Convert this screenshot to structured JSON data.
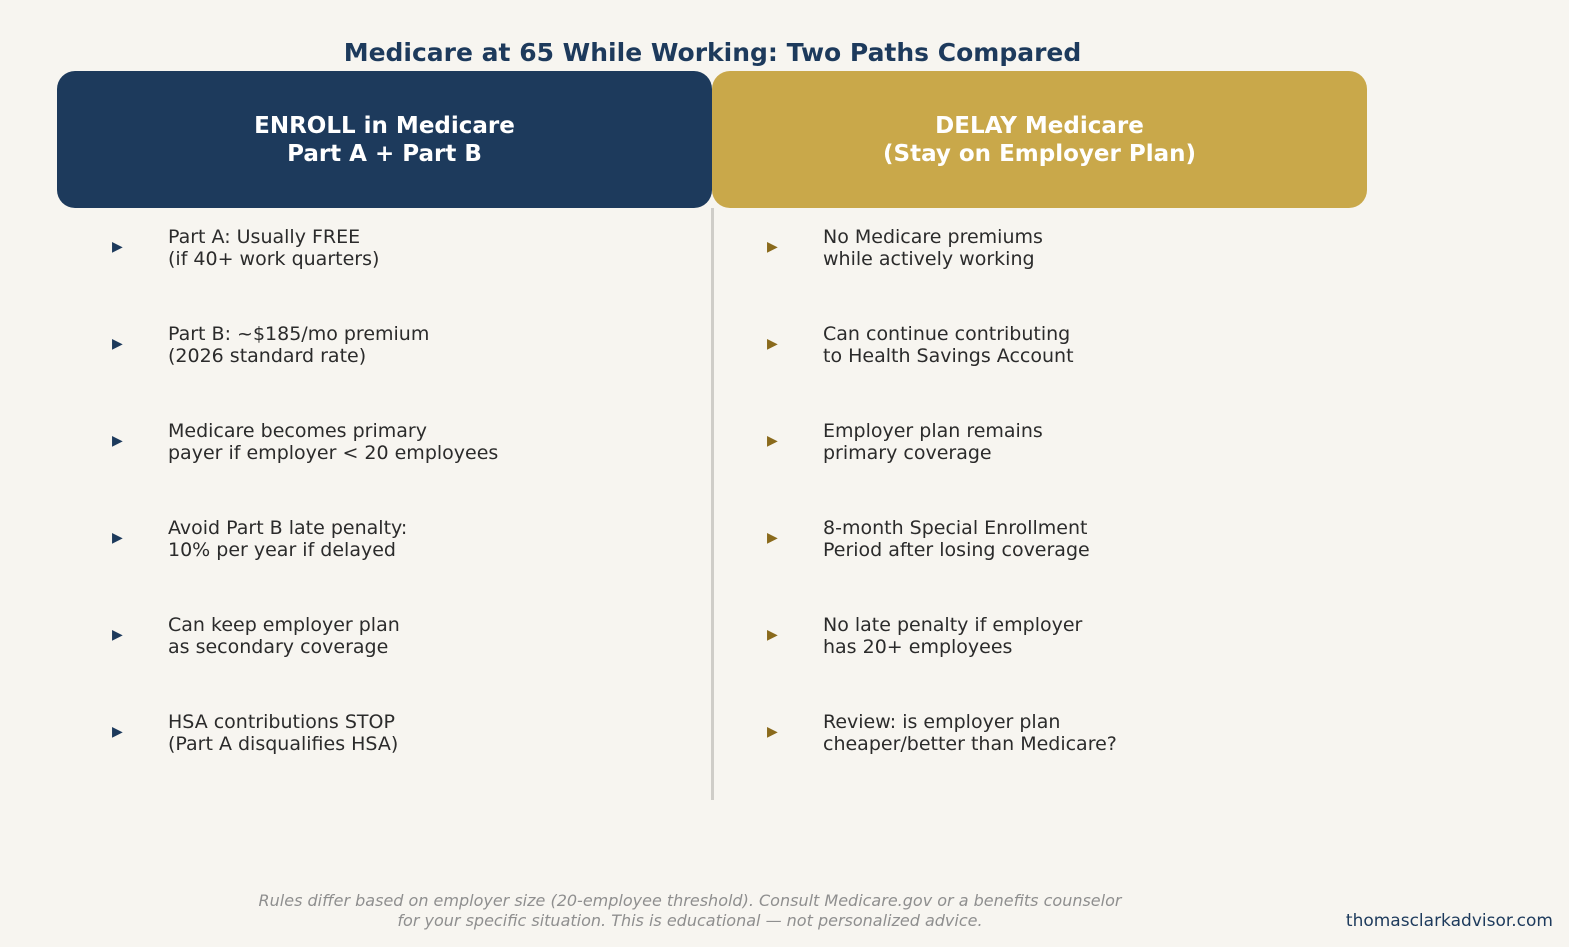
{
  "title": "Medicare at 65 While Working: Two Paths Compared",
  "colors": {
    "enroll_header": "#1d3a5c",
    "delay_header": "#c9a84a",
    "enroll_bullet": "#1d3a5c",
    "delay_bullet": "#8a6a1c",
    "background": "#f7f5f0"
  },
  "bullet_icon": "right-triangle",
  "enroll": {
    "header": [
      "ENROLL in Medicare",
      "Part A + Part B"
    ],
    "items": [
      [
        "Part A: Usually FREE",
        "(if 40+ work quarters)"
      ],
      [
        "Part B: ~$185/mo premium",
        "(2026 standard rate)"
      ],
      [
        "Medicare becomes primary",
        "payer if employer < 20 employees"
      ],
      [
        "Avoid Part B late penalty:",
        "10% per year if delayed"
      ],
      [
        "Can keep employer plan",
        "as secondary coverage"
      ],
      [
        "HSA contributions STOP",
        "(Part A disqualifies HSA)"
      ]
    ]
  },
  "delay": {
    "header": [
      "DELAY Medicare",
      "(Stay on Employer Plan)"
    ],
    "items": [
      [
        "No Medicare premiums",
        "while actively working"
      ],
      [
        "Can continue contributing",
        "to Health Savings Account"
      ],
      [
        "Employer plan remains",
        "primary coverage"
      ],
      [
        "8-month Special Enrollment",
        "Period after losing coverage"
      ],
      [
        "No late penalty if employer",
        "has 20+ employees"
      ],
      [
        "Review: is employer plan",
        "cheaper/better than Medicare?"
      ]
    ]
  },
  "disclaimer": [
    "Rules differ based on employer size (20-employee threshold). Consult Medicare.gov or a benefits counselor",
    "for your specific situation. This is educational — not personalized advice."
  ],
  "website": "thomasclarkadvisor.com"
}
